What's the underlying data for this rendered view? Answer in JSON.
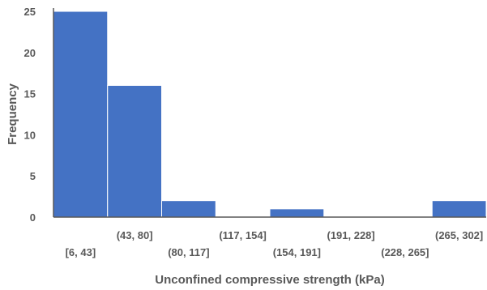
{
  "chart_data": {
    "type": "bar",
    "subtype": "histogram",
    "categories": [
      "[6, 43]",
      "(43, 80]",
      "(80, 117]",
      "(117, 154]",
      "(154, 191]",
      "(191, 228]",
      "(228, 265]",
      "(265, 302]"
    ],
    "values": [
      25,
      16,
      2,
      0,
      1,
      0,
      0,
      2
    ],
    "xlabel": "Unconfined compressive strength (kPa)",
    "ylabel": "Frequency",
    "ylim": [
      0,
      25
    ],
    "yticks": [
      0,
      5,
      10,
      15,
      20,
      25
    ],
    "grid": false,
    "bar_color": "#4472C4",
    "label_layout": "staggered"
  }
}
